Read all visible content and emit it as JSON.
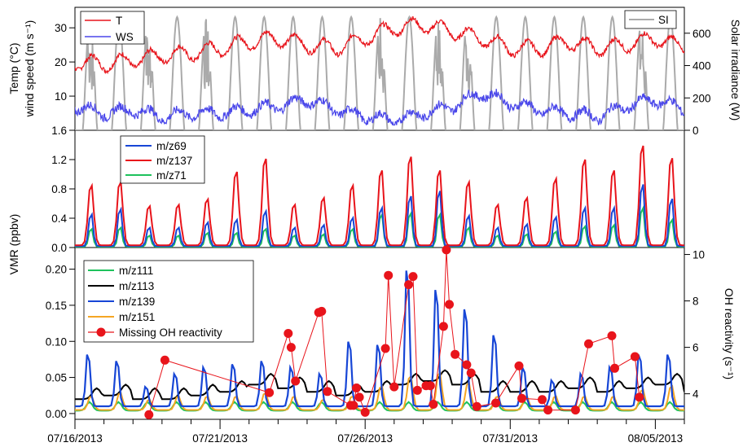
{
  "x_axis": {
    "tick_labels": [
      "07/16/2013",
      "07/21/2013",
      "07/26/2013",
      "07/31/2013",
      "08/05/2013"
    ],
    "range_days": [
      "07/16/2013",
      "08/06/2013"
    ]
  },
  "chart_data": [
    {
      "type": "line",
      "panel": "top",
      "ylabel_lines": [
        "Temp (°C)",
        "wind speed (m s⁻¹)"
      ],
      "ylabel_right": "Solar irradiance (W)",
      "ylim": [
        0,
        36
      ],
      "yticks": [
        "10",
        "20",
        "30"
      ],
      "ylim_right": [
        0,
        760
      ],
      "yticks_right": [
        "0",
        "200",
        "400",
        "600"
      ],
      "series": [
        {
          "name": "T",
          "color": "#e8141b",
          "axis": "left",
          "description": "temperature, ~20–32, daily oscillation peaking 07/27–07/28 at ~31"
        },
        {
          "name": "WS",
          "color": "#4a47ea",
          "axis": "left",
          "description": "wind speed ~3–12, peak ~12 around 07/29"
        },
        {
          "name": "SI",
          "color": "#aaaaaa",
          "axis": "right",
          "description": "daily solar irradiance peaks ~650–720, min 0 at night"
        }
      ]
    },
    {
      "type": "line",
      "panel": "middle",
      "ylim": [
        0,
        1.6
      ],
      "yticks": [
        "0.0",
        "0.4",
        "0.8",
        "1.2",
        "1.6"
      ],
      "series": [
        {
          "name": "m/z69",
          "color": "#1746d6"
        },
        {
          "name": "m/z137",
          "color": "#e8141b"
        },
        {
          "name": "m/z71",
          "color": "#1ec25c"
        }
      ],
      "daily_peaks": {
        "dates": [
          "07/16",
          "07/17",
          "07/18",
          "07/19",
          "07/20",
          "07/21",
          "07/22",
          "07/23",
          "07/24",
          "07/25",
          "07/26",
          "07/27",
          "07/28",
          "07/29",
          "07/30",
          "07/31",
          "08/01",
          "08/02",
          "08/03",
          "08/04",
          "08/05"
        ],
        "m/z137": [
          0.9,
          0.95,
          0.6,
          0.62,
          0.7,
          1.1,
          1.29,
          0.62,
          0.72,
          0.9,
          1.12,
          1.32,
          1.12,
          0.95,
          0.62,
          0.72,
          1.0,
          1.28,
          1.12,
          1.48,
          1.3
        ],
        "m/z69": [
          0.5,
          0.58,
          0.3,
          0.3,
          0.38,
          0.42,
          0.55,
          0.3,
          0.34,
          0.45,
          0.6,
          0.78,
          0.86,
          0.48,
          0.3,
          0.35,
          0.46,
          0.6,
          0.6,
          0.96,
          0.74
        ],
        "m/z71": [
          0.28,
          0.3,
          0.18,
          0.18,
          0.22,
          0.22,
          0.28,
          0.18,
          0.2,
          0.28,
          0.5,
          0.52,
          0.5,
          0.3,
          0.18,
          0.2,
          0.24,
          0.32,
          0.34,
          0.6,
          0.42
        ]
      }
    },
    {
      "type": "line",
      "panel": "bottom",
      "ylabel": "VMR (ppbv)",
      "ylabel_right": "OH reactivity (s⁻¹)",
      "ylim": [
        -0.008,
        0.23
      ],
      "yticks": [
        "0.00",
        "0.05",
        "0.10",
        "0.15",
        "0.20"
      ],
      "ylim_right": [
        2.9,
        10.3
      ],
      "yticks_right": [
        "4",
        "6",
        "8",
        "10"
      ],
      "series": [
        {
          "name": "m/z111",
          "color": "#1ec25c"
        },
        {
          "name": "m/z113",
          "color": "#000000"
        },
        {
          "name": "m/z139",
          "color": "#1746d6"
        },
        {
          "name": "m/z151",
          "color": "#f5a623"
        },
        {
          "name": "Missing OH reactivity",
          "color": "#e8141b",
          "axis": "right",
          "marker": "circle"
        }
      ],
      "m139_daily_peaks": [
        0.09,
        0.08,
        0.04,
        0.06,
        0.07,
        0.075,
        0.08,
        0.07,
        0.06,
        0.11,
        0.105,
        0.22,
        0.19,
        0.16,
        0.12,
        0.07,
        0.05,
        0.06,
        0.07,
        0.09,
        0.09,
        0.08
      ],
      "missing_oh_points": [
        {
          "day": 2.55,
          "v": 3.1
        },
        {
          "day": 3.1,
          "v": 5.45
        },
        {
          "day": 6.7,
          "v": 4.05
        },
        {
          "day": 7.35,
          "v": 6.6
        },
        {
          "day": 7.45,
          "v": 6.0
        },
        {
          "day": 7.6,
          "v": 4.55
        },
        {
          "day": 8.4,
          "v": 7.5
        },
        {
          "day": 8.5,
          "v": 7.55
        },
        {
          "day": 8.7,
          "v": 4.1
        },
        {
          "day": 9.5,
          "v": 3.5
        },
        {
          "day": 9.6,
          "v": 3.5
        },
        {
          "day": 9.7,
          "v": 4.25
        },
        {
          "day": 9.8,
          "v": 3.85
        },
        {
          "day": 10.0,
          "v": 3.2
        },
        {
          "day": 10.7,
          "v": 5.95
        },
        {
          "day": 10.8,
          "v": 9.1
        },
        {
          "day": 11.0,
          "v": 4.3
        },
        {
          "day": 11.5,
          "v": 8.7
        },
        {
          "day": 11.65,
          "v": 9.05
        },
        {
          "day": 11.8,
          "v": 4.15
        },
        {
          "day": 12.1,
          "v": 4.35
        },
        {
          "day": 12.25,
          "v": 4.35
        },
        {
          "day": 12.35,
          "v": 3.55
        },
        {
          "day": 12.7,
          "v": 6.9
        },
        {
          "day": 12.8,
          "v": 10.2
        },
        {
          "day": 12.9,
          "v": 7.85
        },
        {
          "day": 13.1,
          "v": 5.7
        },
        {
          "day": 13.5,
          "v": 5.25
        },
        {
          "day": 13.65,
          "v": 4.9
        },
        {
          "day": 13.85,
          "v": 3.45
        },
        {
          "day": 14.5,
          "v": 3.6
        },
        {
          "day": 15.3,
          "v": 5.2
        },
        {
          "day": 15.4,
          "v": 3.8
        },
        {
          "day": 16.1,
          "v": 3.75
        },
        {
          "day": 16.3,
          "v": 3.3
        },
        {
          "day": 17.25,
          "v": 3.3
        },
        {
          "day": 17.7,
          "v": 6.15
        },
        {
          "day": 18.5,
          "v": 6.5
        },
        {
          "day": 18.6,
          "v": 5.1
        },
        {
          "day": 19.3,
          "v": 5.6
        },
        {
          "day": 19.45,
          "v": 3.85
        }
      ]
    }
  ],
  "legends": {
    "top_left": [
      "T",
      "WS"
    ],
    "top_right": [
      "SI"
    ],
    "middle": [
      "m/z69",
      "m/z137",
      "m/z71"
    ],
    "bottom": [
      "m/z111",
      "m/z113",
      "m/z139",
      "m/z151",
      "Missing OH reactivity"
    ]
  },
  "left_ylabel_shared": "VMR (ppbv)"
}
